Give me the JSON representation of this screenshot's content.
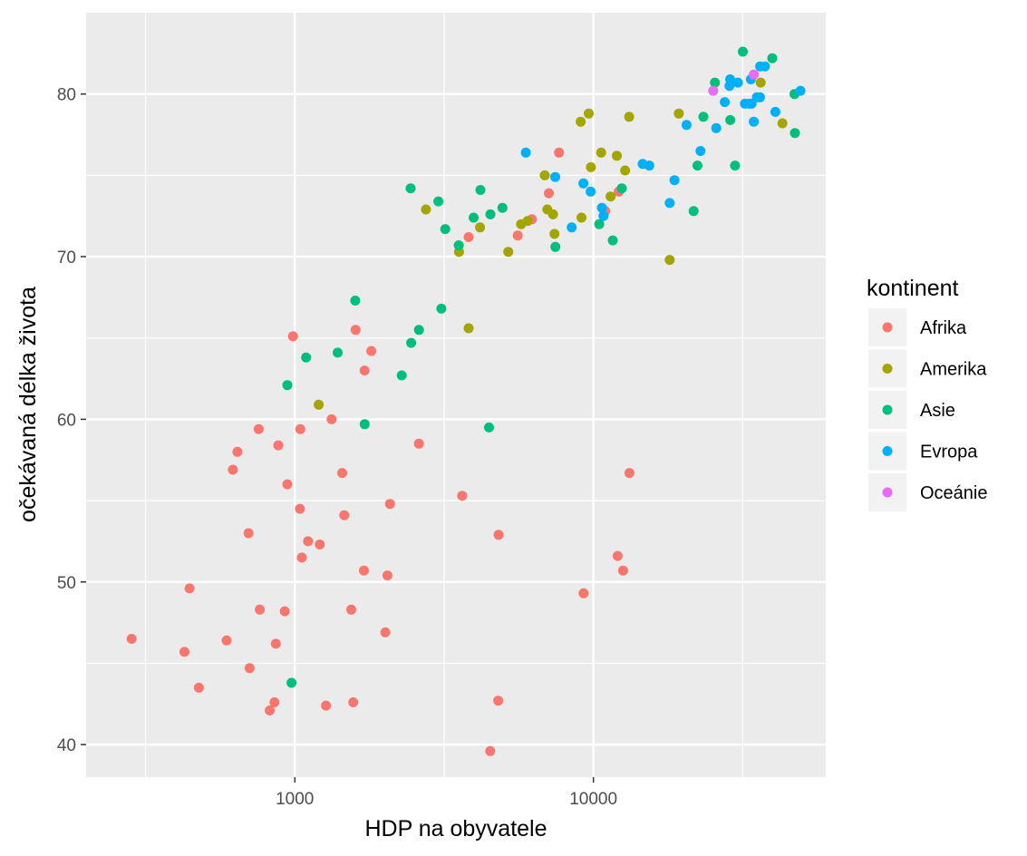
{
  "chart_data": {
    "type": "scatter",
    "xlabel": "HDP na obyvatele",
    "ylabel": "očekávaná délka života",
    "x_scale": "log10",
    "xlim": [
      200,
      60000
    ],
    "ylim": [
      38,
      85
    ],
    "x_ticks": [
      1000,
      10000
    ],
    "x_tick_labels": [
      "1000",
      "10000"
    ],
    "y_ticks": [
      40,
      50,
      60,
      70,
      80
    ],
    "y_tick_labels": [
      "40",
      "50",
      "60",
      "70",
      "80"
    ],
    "grid": true,
    "legend": {
      "title": "kontinent",
      "placement": "right",
      "entries": [
        "Afrika",
        "Amerika",
        "Asie",
        "Evropa",
        "Oceánie"
      ]
    },
    "series": [
      {
        "name": "Afrika",
        "color": "#F8766D",
        "points": [
          [
            284,
            46.5
          ],
          [
            427,
            45.7
          ],
          [
            444,
            49.6
          ],
          [
            477,
            43.5
          ],
          [
            591,
            46.4
          ],
          [
            620,
            56.9
          ],
          [
            642,
            58.0
          ],
          [
            700,
            53.0
          ],
          [
            706,
            44.7
          ],
          [
            757,
            59.4
          ],
          [
            763,
            48.3
          ],
          [
            824,
            42.1
          ],
          [
            855,
            42.6
          ],
          [
            864,
            46.2
          ],
          [
            880,
            58.4
          ],
          [
            925,
            48.2
          ],
          [
            944,
            56.0
          ],
          [
            986,
            65.1
          ],
          [
            1040,
            54.5
          ],
          [
            1043,
            59.4
          ],
          [
            1056,
            51.5
          ],
          [
            1107,
            52.5
          ],
          [
            1212,
            52.3
          ],
          [
            1271,
            42.4
          ],
          [
            1328,
            60.0
          ],
          [
            1441,
            56.7
          ],
          [
            1464,
            54.1
          ],
          [
            1545,
            48.3
          ],
          [
            1569,
            42.6
          ],
          [
            1598,
            65.5
          ],
          [
            1704,
            50.7
          ],
          [
            1712,
            63.0
          ],
          [
            1803,
            64.2
          ],
          [
            2010,
            46.9
          ],
          [
            2042,
            50.4
          ],
          [
            2082,
            54.8
          ],
          [
            2602,
            58.5
          ],
          [
            3632,
            55.3
          ],
          [
            3820,
            71.2
          ],
          [
            4513,
            39.6
          ],
          [
            4797,
            42.7
          ],
          [
            4811,
            52.9
          ],
          [
            5581,
            71.3
          ],
          [
            6223,
            72.3
          ],
          [
            7093,
            73.9
          ],
          [
            7670,
            76.4
          ],
          [
            9270,
            49.3
          ],
          [
            10957,
            72.8
          ],
          [
            12057,
            51.6
          ],
          [
            12155,
            74.0
          ],
          [
            12570,
            50.7
          ],
          [
            13206,
            56.7
          ]
        ]
      },
      {
        "name": "Amerika",
        "color": "#A3A500",
        "points": [
          [
            1202,
            60.9
          ],
          [
            2749,
            72.9
          ],
          [
            3548,
            70.3
          ],
          [
            3820,
            65.6
          ],
          [
            4173,
            71.8
          ],
          [
            5186,
            70.3
          ],
          [
            5728,
            72.0
          ],
          [
            6025,
            72.2
          ],
          [
            6874,
            75.0
          ],
          [
            7006,
            72.9
          ],
          [
            7321,
            72.6
          ],
          [
            7408,
            71.4
          ],
          [
            9066,
            78.3
          ],
          [
            9123,
            72.4
          ],
          [
            9645,
            78.8
          ],
          [
            9809,
            75.5
          ],
          [
            10611,
            76.4
          ],
          [
            11416,
            73.7
          ],
          [
            11977,
            76.2
          ],
          [
            12779,
            75.3
          ],
          [
            13172,
            78.6
          ],
          [
            18009,
            69.8
          ],
          [
            19329,
            78.8
          ],
          [
            36319,
            80.7
          ],
          [
            42952,
            78.2
          ]
        ]
      },
      {
        "name": "Asie",
        "color": "#00BF7D",
        "points": [
          [
            944,
            62.1
          ],
          [
            975,
            43.8
          ],
          [
            1091,
            63.8
          ],
          [
            1391,
            64.1
          ],
          [
            1593,
            67.3
          ],
          [
            1714,
            59.7
          ],
          [
            2280,
            62.7
          ],
          [
            2452,
            64.7
          ],
          [
            2605,
            65.5
          ],
          [
            2442,
            74.2
          ],
          [
            3025,
            73.4
          ],
          [
            3096,
            66.8
          ],
          [
            3190,
            71.7
          ],
          [
            3541,
            70.7
          ],
          [
            3970,
            72.4
          ],
          [
            4185,
            74.1
          ],
          [
            4471,
            59.5
          ],
          [
            4519,
            72.6
          ],
          [
            4959,
            73.0
          ],
          [
            7458,
            70.6
          ],
          [
            10461,
            72.0
          ],
          [
            11606,
            71.0
          ],
          [
            12452,
            74.2
          ],
          [
            21655,
            72.8
          ],
          [
            22316,
            75.6
          ],
          [
            23348,
            78.6
          ],
          [
            25523,
            80.7
          ],
          [
            28718,
            78.4
          ],
          [
            29796,
            75.6
          ],
          [
            31656,
            82.6
          ],
          [
            39725,
            82.2
          ],
          [
            47143,
            80.0
          ],
          [
            47307,
            77.6
          ]
        ]
      },
      {
        "name": "Evropa",
        "color": "#00B0F6",
        "points": [
          [
            5937,
            76.4
          ],
          [
            7446,
            74.9
          ],
          [
            8458,
            71.8
          ],
          [
            9254,
            74.5
          ],
          [
            9787,
            74.0
          ],
          [
            10681,
            73.0
          ],
          [
            10808,
            72.5
          ],
          [
            14619,
            75.7
          ],
          [
            15390,
            75.6
          ],
          [
            18008,
            73.3
          ],
          [
            18679,
            74.7
          ],
          [
            20510,
            78.1
          ],
          [
            22833,
            76.5
          ],
          [
            25768,
            77.9
          ],
          [
            27538,
            79.5
          ],
          [
            28570,
            80.5
          ],
          [
            28692,
            80.9
          ],
          [
            30470,
            80.7
          ],
          [
            32170,
            79.4
          ],
          [
            33207,
            79.4
          ],
          [
            33693,
            80.9
          ],
          [
            33860,
            79.4
          ],
          [
            34435,
            78.3
          ],
          [
            35278,
            79.8
          ],
          [
            36126,
            79.8
          ],
          [
            36181,
            81.7
          ],
          [
            37506,
            81.7
          ],
          [
            40676,
            78.9
          ],
          [
            49357,
            80.2
          ]
        ]
      },
      {
        "name": "Oceánie",
        "color": "#E76BF3",
        "points": [
          [
            25185,
            80.2
          ],
          [
            34435,
            81.2
          ]
        ]
      }
    ]
  }
}
